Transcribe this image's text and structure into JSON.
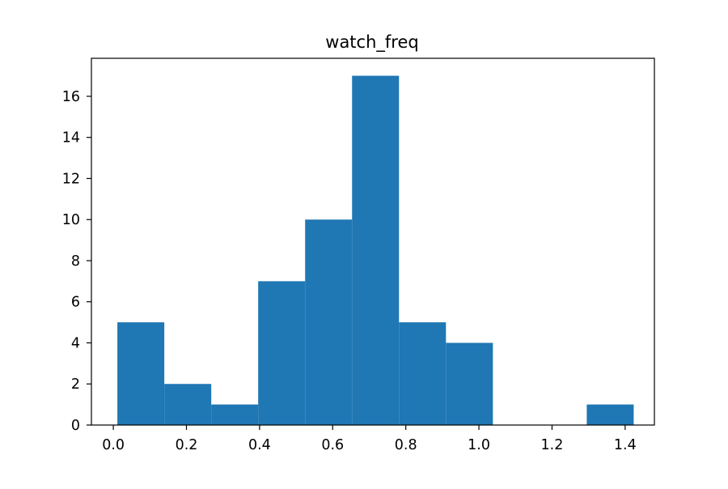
{
  "chart_data": {
    "type": "bar",
    "subtype": "histogram",
    "title": "watch_freq",
    "xlabel": "",
    "ylabel": "",
    "bin_edges": [
      0.011,
      0.1394,
      0.2678,
      0.3962,
      0.5246,
      0.653,
      0.7814,
      0.9098,
      1.0382,
      1.1666,
      1.295,
      1.4234
    ],
    "values": [
      5,
      2,
      1,
      7,
      10,
      17,
      5,
      4,
      0,
      0,
      1
    ],
    "xlim": [
      -0.06,
      1.48
    ],
    "ylim": [
      0,
      17.85
    ],
    "xticks": [
      "0.0",
      "0.2",
      "0.4",
      "0.6",
      "0.8",
      "1.0",
      "1.2",
      "1.4"
    ],
    "yticks": [
      "0",
      "2",
      "4",
      "6",
      "8",
      "10",
      "12",
      "14",
      "16"
    ],
    "grid": false,
    "legend": "none",
    "colors": {
      "bar": "#1f77b4",
      "axes": "#000000",
      "background": "#ffffff"
    }
  }
}
